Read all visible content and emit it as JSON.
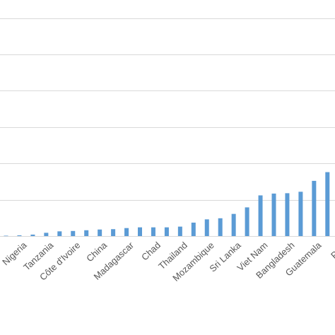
{
  "chart_data": {
    "type": "bar",
    "title": "",
    "xlabel": "",
    "ylabel": "",
    "ylim": [
      0,
      6.5
    ],
    "grid": true,
    "legend": "none",
    "bar_color": "#5b9bd5",
    "gridline_values": [
      1,
      2,
      3,
      4,
      5,
      6
    ],
    "label_every": 2,
    "categories": [
      "Nigeria",
      "",
      "Tanzania",
      "",
      "Côte d'Ivoire",
      "",
      "China",
      "",
      "Madagascar",
      "",
      "Chad",
      "",
      "Thailand",
      "",
      "Mozambique",
      "",
      "Sri Lanka",
      "",
      "Viet Nam",
      "",
      "Bangladesh",
      "",
      "Guatemala",
      "",
      "Peru"
    ],
    "values": [
      0.01,
      0.02,
      0.04,
      0.09,
      0.13,
      0.14,
      0.16,
      0.18,
      0.19,
      0.22,
      0.24,
      0.24,
      0.24,
      0.26,
      0.37,
      0.46,
      0.49,
      0.61,
      0.79,
      1.12,
      1.17,
      1.18,
      1.22,
      1.52,
      1.76
    ]
  }
}
